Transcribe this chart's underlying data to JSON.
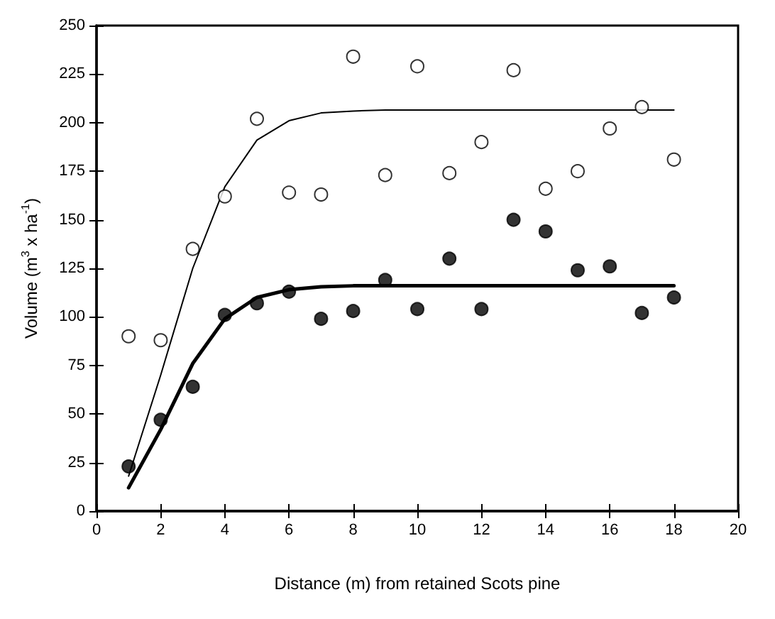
{
  "chart_data": {
    "type": "scatter",
    "xlabel": "Distance (m) from retained Scots pine",
    "ylabel": "Volume (m$^{3}$ x ha$^{-1}$)",
    "x": [
      1,
      2,
      3,
      4,
      5,
      6,
      7,
      8,
      9,
      10,
      11,
      12,
      13,
      14,
      15,
      16,
      17,
      18
    ],
    "series": [
      {
        "type": "scatter",
        "color": "#ffffff",
        "marker": "circle",
        "values": [
          90,
          88,
          135,
          162,
          202,
          164,
          163,
          234,
          173,
          229,
          174,
          190,
          227,
          166,
          175,
          197,
          208,
          181
        ]
      },
      {
        "type": "scatter",
        "color": "#000000",
        "marker": "circle",
        "values": [
          23,
          47,
          64,
          101,
          107,
          113,
          99,
          103,
          119,
          104,
          130,
          104,
          150,
          144,
          124,
          126,
          102,
          110
        ]
      },
      {
        "type": "line",
        "color": "#000000",
        "marker": "none",
        "values": [
          18,
          70,
          125,
          167,
          191,
          201,
          205,
          206,
          206.5,
          206.5,
          206.5,
          206.5,
          206.5,
          206.5,
          206.5,
          206.5,
          206.5,
          206.5
        ]
      },
      {
        "type": "line",
        "color": "#000000",
        "marker": "none",
        "values": [
          12,
          42,
          76,
          99,
          110,
          114,
          115.5,
          116,
          116,
          116,
          116,
          116,
          116,
          116,
          116,
          116,
          116,
          116
        ]
      }
    ],
    "xlim": [
      0,
      20
    ],
    "xticks": [
      0,
      2,
      4,
      6,
      8,
      10,
      12,
      14,
      16,
      18,
      20
    ],
    "ylim": [
      0,
      250
    ],
    "yticks": [
      0,
      25,
      50,
      75,
      100,
      125,
      150,
      175,
      200,
      225,
      250
    ],
    "grid": false
  }
}
